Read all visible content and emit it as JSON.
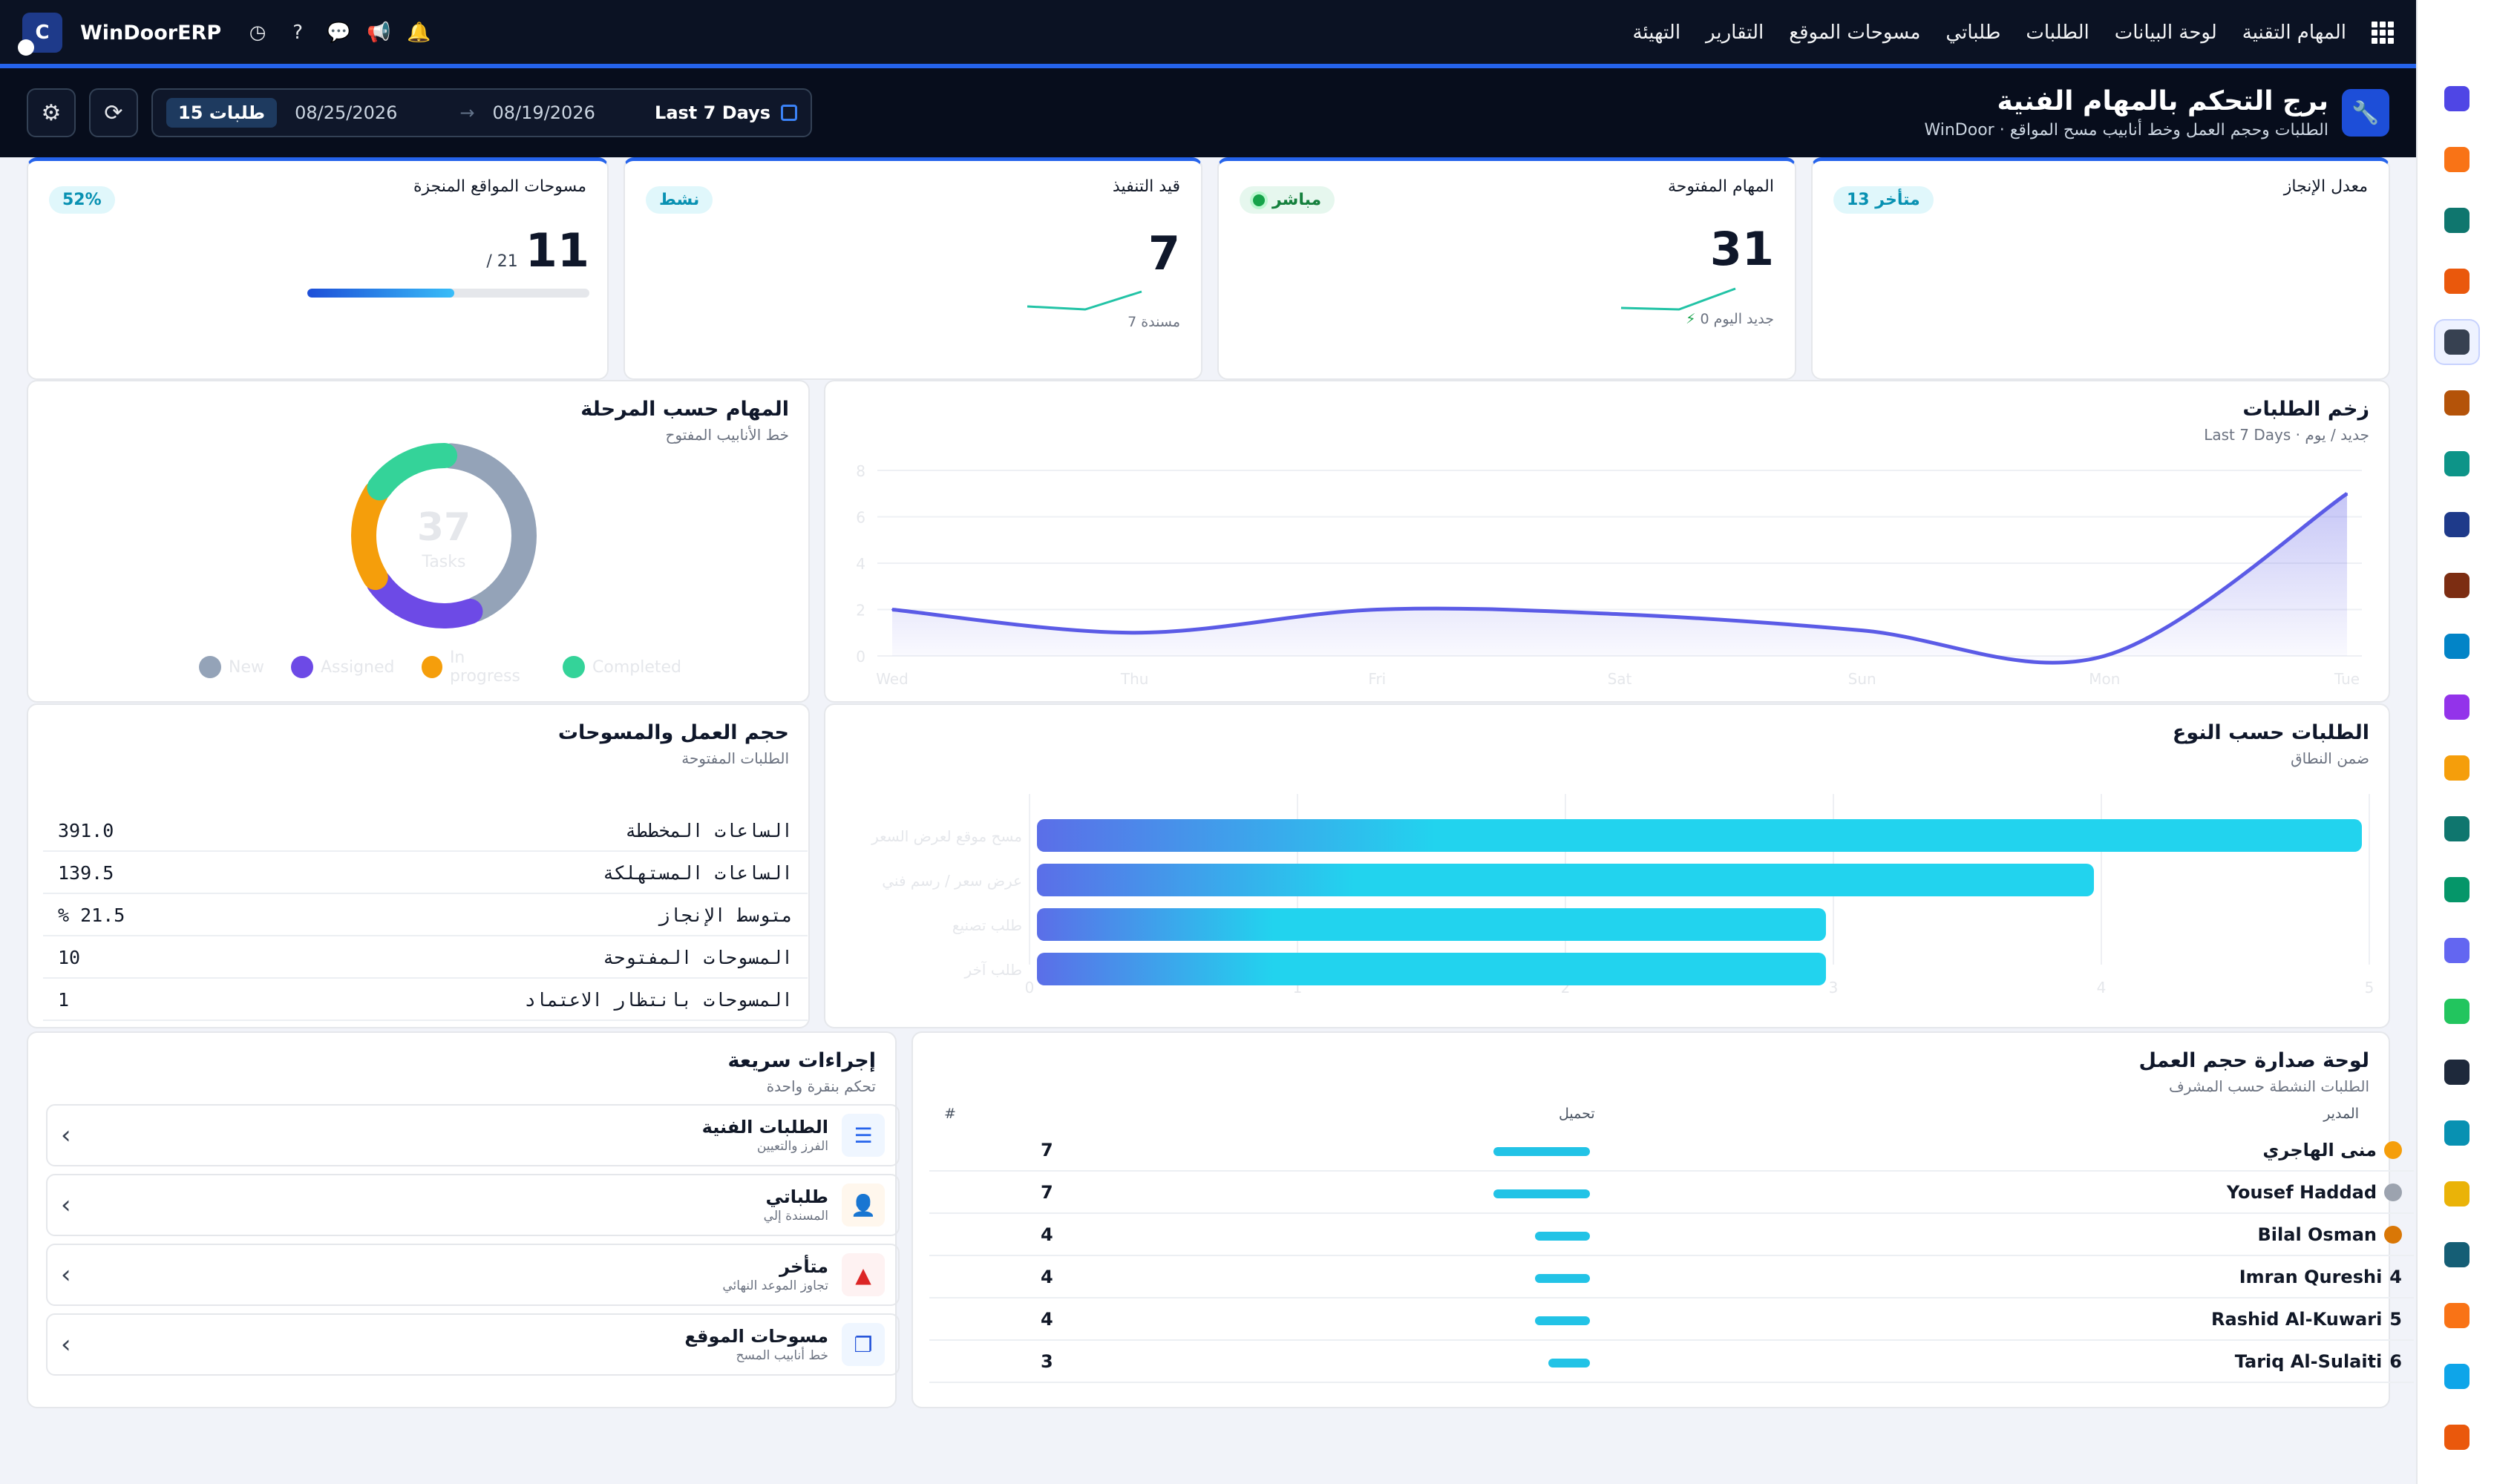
{
  "app": {
    "brand": "WinDoorERP",
    "nav": [
      "المهام التقنية",
      "لوحة البيانات",
      "الطلبات",
      "طلباتي",
      "مسوحات الموقع",
      "التقارير",
      "التهيئة"
    ]
  },
  "header": {
    "title": "برج التحكم بالمهام الفنية",
    "subtitle": "الطلبات وحجم العمل وخط أنابيب مسح المواقع · WinDoor",
    "request_badge": "15 طلبات",
    "date_from": "08/25/2026",
    "arrow": "→",
    "date_to": "08/19/2026",
    "preset": "Last 7 Days"
  },
  "kpis": {
    "completion": {
      "label": "معدل الإنجاز",
      "pill": "13 متأخر"
    },
    "open_tasks": {
      "label": "المهام المفتوحة",
      "pill": "مباشر",
      "value": "31",
      "note": "0 جديد اليوم"
    },
    "in_progress": {
      "label": "قيد التنفيذ",
      "pill": "نشط",
      "value": "7",
      "note": "7 مسندة"
    },
    "surveys": {
      "label": "مسوحات المواقع المنجزة",
      "pill": "52%",
      "value": "11",
      "total": "/ 21",
      "progress": 0.52
    }
  },
  "stage_card": {
    "title": "المهام حسب المرحلة",
    "subtitle": "خط الأنابيب المفتوح",
    "center_value": "37",
    "center_label": "Tasks"
  },
  "momentum_card": {
    "title": "زخم الطلبات",
    "subtitle": "Last 7 Days · جديد / يوم"
  },
  "workload_card": {
    "title": "حجم العمل والمسوحات",
    "subtitle": "الطلبات المفتوحة",
    "rows": [
      {
        "label": "الساعات المخططة",
        "value": "391.0"
      },
      {
        "label": "الساعات المستهلكة",
        "value": "139.5"
      },
      {
        "label": "متوسط الإنجاز",
        "value": "% 21.5"
      },
      {
        "label": "المسوحات المفتوحة",
        "value": "10"
      },
      {
        "label": "المسوحات بانتظار الاعتماد",
        "value": "1"
      }
    ]
  },
  "type_card": {
    "title": "الطلبات حسب النوع",
    "subtitle": "ضمن النطاق"
  },
  "quick_actions": {
    "title": "إجراءات سريعة",
    "subtitle": "تحكم بنقرة واحدة",
    "items": [
      {
        "title": "الطلبات الفنية",
        "sub": "الفرز والتعيين",
        "icon": "list-icon",
        "color": "#2563eb",
        "bg": "#eff6ff"
      },
      {
        "title": "طلباتي",
        "sub": "المسندة إلي",
        "icon": "user-icon",
        "color": "#ea580c",
        "bg": "#fff7ed"
      },
      {
        "title": "متأخر",
        "sub": "تجاوز الموعد النهائي",
        "icon": "warning-icon",
        "color": "#dc2626",
        "bg": "#fef2f2"
      },
      {
        "title": "مسوحات الموقع",
        "sub": "خط أنابيب المسح",
        "icon": "copy-icon",
        "color": "#1d4ed8",
        "bg": "#eff6ff"
      }
    ]
  },
  "leaderboard": {
    "title": "لوحة صدارة حجم العمل",
    "subtitle": "الطلبات النشطة حسب المشرف",
    "col_manager": "المدير",
    "col_load": "تحميل",
    "col_rank": "#",
    "rows": [
      {
        "name": "منى الهاجري",
        "rank_label": "",
        "medal": "#f59e0b",
        "count": "7",
        "load": 7
      },
      {
        "name": "Yousef Haddad",
        "rank_label": "",
        "medal": "#9ca3af",
        "count": "7",
        "load": 7
      },
      {
        "name": "Bilal Osman",
        "rank_label": "",
        "medal": "#d97706",
        "count": "4",
        "load": 4
      },
      {
        "name": "Imran Qureshi",
        "rank_label": "4",
        "medal": "",
        "count": "4",
        "load": 4
      },
      {
        "name": "Rashid Al-Kuwari",
        "rank_label": "5",
        "medal": "",
        "count": "4",
        "load": 4
      },
      {
        "name": "Tariq Al-Sulaiti",
        "rank_label": "6",
        "medal": "",
        "count": "3",
        "load": 3
      }
    ]
  },
  "chart_data": [
    {
      "type": "pie",
      "title": "المهام حسب المرحلة",
      "categories": [
        "New",
        "Assigned",
        "In progress",
        "Completed"
      ],
      "values": [
        16,
        8,
        7,
        6
      ],
      "colors": [
        "#94a3b8",
        "#6d4ae6",
        "#f59e0b",
        "#34d399"
      ],
      "legend": "bottom"
    },
    {
      "type": "area",
      "title": "زخم الطلبات",
      "categories": [
        "Wed",
        "Thu",
        "Fri",
        "Sat",
        "Sun",
        "Mon",
        "Tue"
      ],
      "values": [
        2,
        1,
        2,
        1.8,
        1.1,
        0,
        7
      ],
      "ylim": [
        0,
        8
      ],
      "yticks": [
        0,
        2,
        4,
        6,
        8
      ],
      "grid": true,
      "color": "#5b5be6"
    },
    {
      "type": "bar",
      "orientation": "horizontal",
      "title": "الطلبات حسب النوع",
      "categories": [
        "مسح موقع لعرض السعر",
        "عرض سعر / رسم فني",
        "طلب تصنيع",
        "طلب آخر"
      ],
      "values": [
        5,
        4,
        3,
        3
      ],
      "xlim": [
        0,
        5
      ],
      "xticks": [
        0,
        1,
        2,
        3,
        4,
        5
      ],
      "grid": true
    }
  ],
  "sidebar_icons": [
    "m-icon",
    "chat-bubble-icon",
    "layers-icon",
    "bar-chart-icon",
    "cube-icon",
    "photo-icon",
    "check-icon",
    "book-icon",
    "box-icon",
    "s-icon",
    "people-icon",
    "calendar-icon",
    "pen-icon",
    "contact-icon",
    "dashboard-icon",
    "whatsapp-icon",
    "dial-icon",
    "wave-icon",
    "send-icon",
    "card-icon",
    "hexagon-icon",
    "pie-icon",
    "nut-icon"
  ]
}
